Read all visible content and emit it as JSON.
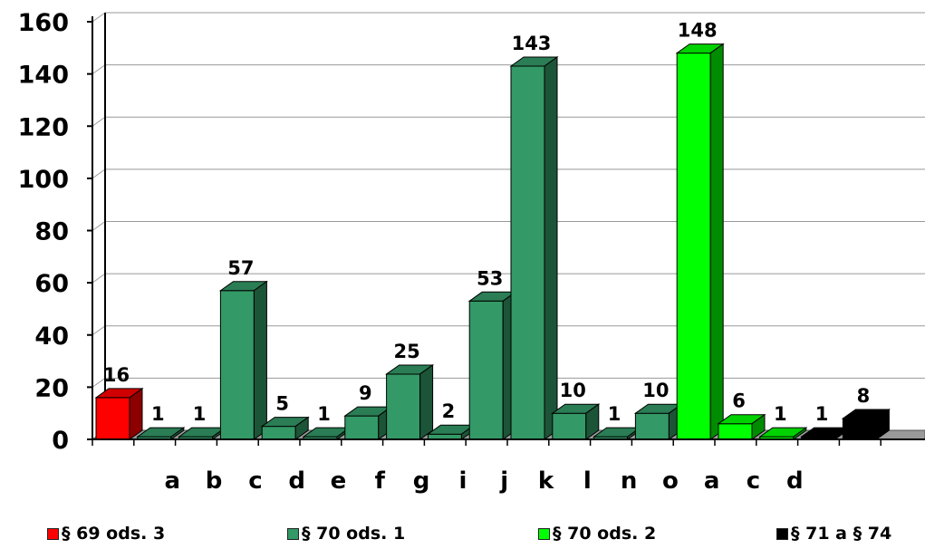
{
  "chart_data": {
    "type": "bar",
    "ylim": [
      0,
      160
    ],
    "yticks": [
      "0",
      "20",
      "40",
      "60",
      "80",
      "100",
      "120",
      "140",
      "160"
    ],
    "grid": true,
    "legend_position": "bottom",
    "categories": [
      "",
      "a",
      "b",
      "c",
      "d",
      "e",
      "f",
      "g",
      "i",
      "j",
      "k",
      "l",
      "n",
      "o",
      "a",
      "c",
      "d",
      "",
      ""
    ],
    "values": [
      16,
      1,
      1,
      57,
      5,
      1,
      9,
      25,
      2,
      53,
      143,
      10,
      1,
      10,
      148,
      6,
      1,
      1,
      8
    ],
    "value_labels": [
      "16",
      "1",
      "1",
      "57",
      "5",
      "1",
      "9",
      "25",
      "2",
      "53",
      "143",
      "10",
      "1",
      "10",
      "148",
      "6",
      "1",
      "1",
      "8"
    ],
    "bar_series": [
      0,
      1,
      1,
      1,
      1,
      1,
      1,
      1,
      1,
      1,
      1,
      1,
      1,
      1,
      2,
      2,
      2,
      3,
      3
    ],
    "series": [
      {
        "name": "§ 69 ods. 3",
        "color": "#ff0000"
      },
      {
        "name": "§ 70 ods. 1",
        "color": "#339966"
      },
      {
        "name": "§ 70 ods. 2",
        "color": "#00ff00"
      },
      {
        "name": "§ 71 a § 74",
        "color": "#000000"
      }
    ]
  }
}
